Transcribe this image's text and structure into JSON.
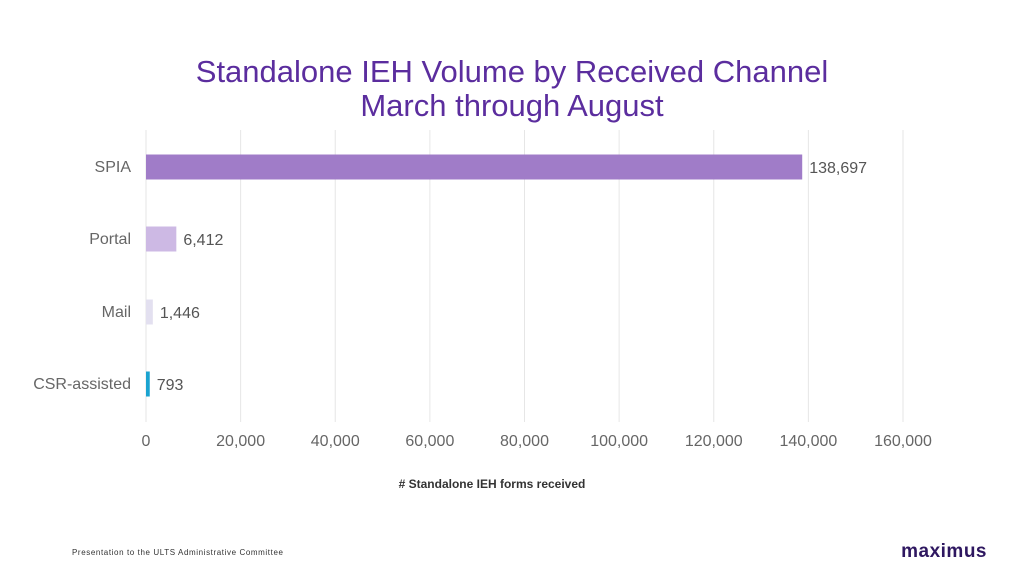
{
  "header": {
    "title_line1": "Standalone IEH Volume by Received Channel",
    "title_line2": "March through August"
  },
  "chart_data": {
    "type": "bar",
    "orientation": "horizontal",
    "title": "Standalone IEH Volume by Received Channel March through August",
    "categories": [
      "SPIA",
      "Portal",
      "Mail",
      "CSR-assisted"
    ],
    "values": [
      138697,
      6412,
      1446,
      793
    ],
    "value_labels": [
      "138,697",
      "6,412",
      "1,446",
      "793"
    ],
    "bar_colors": [
      "#a07cc8",
      "#cdb9e4",
      "#e3e0f0",
      "#1aa3d0"
    ],
    "xlabel": "# Standalone IEH forms received",
    "ylabel": "",
    "xlim": [
      0,
      160000
    ],
    "ticks": [
      0,
      20000,
      40000,
      60000,
      80000,
      100000,
      120000,
      140000,
      160000
    ],
    "tick_labels": [
      "0",
      "20,000",
      "40,000",
      "60,000",
      "80,000",
      "100,000",
      "120,000",
      "140,000",
      "160,000"
    ],
    "grid": true,
    "legend": "none"
  },
  "footer": {
    "presentation_text": "Presentation to the ULTS Administrative Committee",
    "logo_text": "maximus"
  },
  "colors": {
    "title": "#5b2d9e",
    "gridline": "#e6e6e6",
    "logo": "#2e1760"
  }
}
